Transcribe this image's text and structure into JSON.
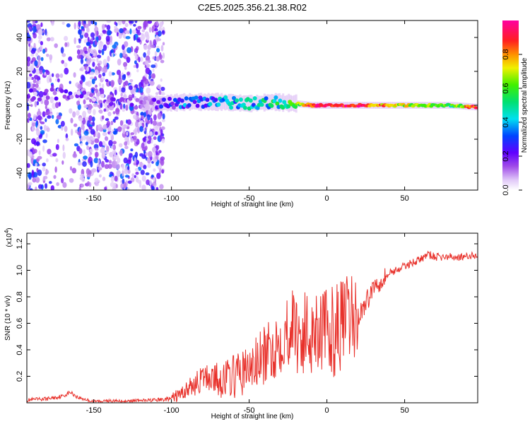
{
  "title": "C2E5.2025.356.21.38.R02",
  "chart_data": [
    {
      "type": "heatmap",
      "name": "spectrogram",
      "xlabel": "Height of straight line (km)",
      "ylabel": "Frequency (Hz)",
      "xlim": [
        -193,
        97
      ],
      "ylim": [
        -50,
        50
      ],
      "xticks": [
        -150,
        -100,
        -50,
        0,
        50
      ],
      "yticks": [
        -40,
        -20,
        0,
        20,
        40
      ],
      "colorbar": {
        "label": "Normalized spectral amplitude",
        "range": [
          0,
          1
        ],
        "ticks": [
          0.0,
          0.2,
          0.4,
          0.6,
          0.8
        ]
      },
      "description_points": {
        "x": [
          -190,
          -170,
          -150,
          -130,
          -110,
          -90,
          -70,
          -50,
          -35,
          -20,
          -10,
          0,
          20,
          40,
          60,
          80,
          95
        ],
        "center_freq": [
          6,
          7,
          4,
          2,
          1,
          2,
          2,
          1,
          2,
          1,
          0,
          0,
          0,
          0,
          0,
          0,
          -1
        ],
        "amplitude": [
          0.1,
          0.15,
          0.08,
          0.08,
          0.2,
          0.3,
          0.35,
          0.4,
          0.45,
          0.55,
          0.9,
          0.95,
          0.9,
          0.75,
          0.6,
          0.55,
          0.9
        ]
      }
    },
    {
      "type": "line",
      "name": "snr",
      "xlabel": "Height of straight line (km)",
      "ylabel": "SNR (10 * v/v)",
      "multiplier": "(x10",
      "multiplier_exp": "4",
      "xlim": [
        -193,
        97
      ],
      "ylim": [
        0,
        1.28
      ],
      "xticks": [
        -150,
        -100,
        -50,
        0,
        50
      ],
      "yticks": [
        0.2,
        0.4,
        0.6,
        0.8,
        1.0,
        1.2
      ],
      "series": [
        {
          "name": "SNR",
          "color": "#e8312b",
          "x": [
            -193,
            -180,
            -170,
            -165,
            -160,
            -150,
            -130,
            -110,
            -100,
            -95,
            -90,
            -85,
            -80,
            -75,
            -70,
            -60,
            -50,
            -45,
            -40,
            -35,
            -30,
            -25,
            -22,
            -20,
            -15,
            -10,
            -5,
            0,
            5,
            10,
            15,
            20,
            25,
            30,
            40,
            50,
            55,
            60,
            65,
            70,
            80,
            90,
            97
          ],
          "y": [
            0.02,
            0.03,
            0.05,
            0.08,
            0.04,
            0.01,
            0.01,
            0.02,
            0.03,
            0.06,
            0.1,
            0.14,
            0.18,
            0.2,
            0.17,
            0.2,
            0.25,
            0.3,
            0.35,
            0.4,
            0.48,
            0.55,
            0.6,
            0.55,
            0.5,
            0.55,
            0.6,
            0.5,
            0.55,
            0.6,
            0.62,
            0.65,
            0.75,
            0.88,
            0.98,
            1.03,
            1.06,
            1.08,
            1.12,
            1.1,
            1.1,
            1.1,
            1.12
          ]
        }
      ]
    }
  ],
  "colors": {
    "line": "#e8312b",
    "frame": "#000000"
  }
}
